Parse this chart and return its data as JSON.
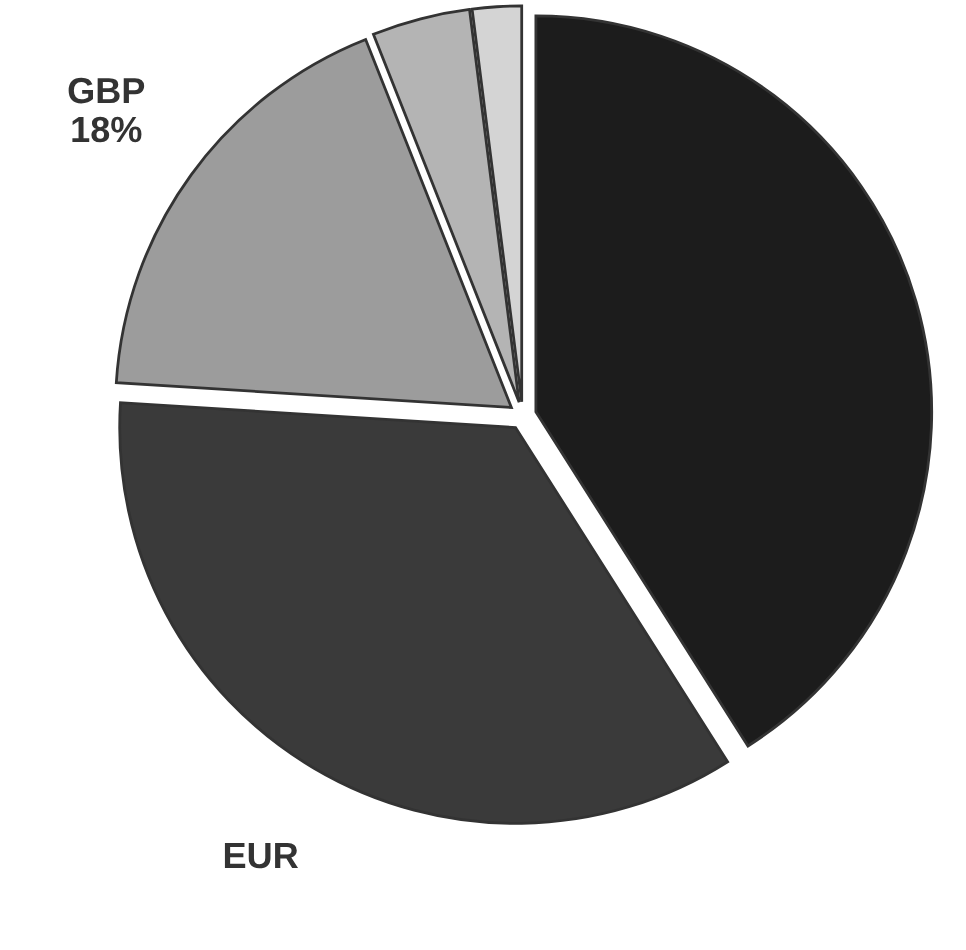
{
  "chart_data": {
    "type": "pie",
    "categories": [
      null,
      "EUR",
      "GBP",
      null,
      null
    ],
    "values": [
      41,
      35,
      18,
      4,
      2
    ],
    "value_labels": [
      null,
      null,
      "18%",
      null,
      null
    ],
    "colors": [
      "#1c1c1c",
      "#3a3a3a",
      "#9c9c9c",
      "#b4b4b4",
      "#d4d4d4"
    ]
  }
}
